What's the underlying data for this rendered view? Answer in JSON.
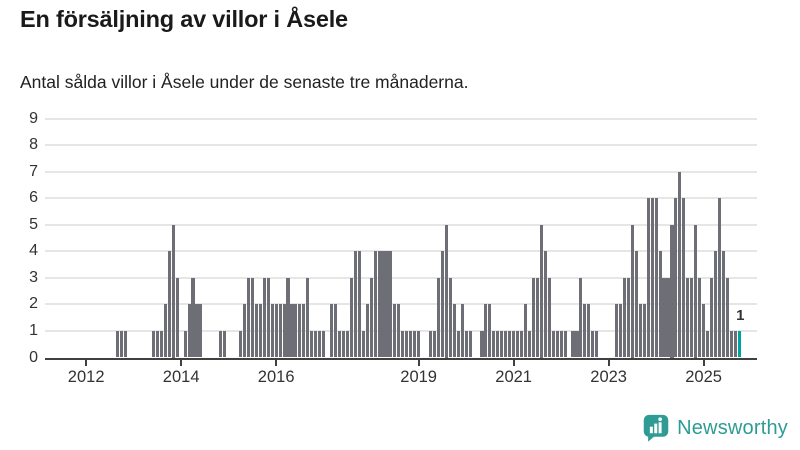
{
  "header": {
    "title": "En försäljning av villor i Åsele",
    "subtitle": "Antal sålda villor i Åsele under de senaste tre månaderna."
  },
  "chart_data": {
    "type": "bar",
    "title": "En försäljning av villor i Åsele",
    "subtitle": "Antal sålda villor i Åsele under de senaste tre månaderna.",
    "xlabel": "",
    "ylabel": "",
    "ylim": [
      0,
      9
    ],
    "yticks": [
      0,
      1,
      2,
      3,
      4,
      5,
      6,
      7,
      8,
      9
    ],
    "grid": true,
    "legend": "none",
    "x_start_month": "2011-04",
    "x_end_month": "2025-10",
    "values": [
      0,
      0,
      0,
      0,
      0,
      0,
      0,
      0,
      0,
      0,
      0,
      0,
      0,
      0,
      0,
      0,
      0,
      1,
      1,
      1,
      0,
      0,
      0,
      0,
      0,
      0,
      1,
      1,
      1,
      2,
      4,
      5,
      3,
      0,
      1,
      2,
      3,
      2,
      2,
      0,
      0,
      0,
      0,
      1,
      1,
      0,
      0,
      0,
      1,
      2,
      3,
      3,
      2,
      2,
      3,
      3,
      2,
      2,
      2,
      2,
      3,
      2,
      2,
      2,
      2,
      3,
      1,
      1,
      1,
      1,
      0,
      2,
      2,
      1,
      1,
      1,
      3,
      4,
      4,
      1,
      2,
      3,
      4,
      4,
      4,
      4,
      4,
      2,
      2,
      1,
      1,
      1,
      1,
      1,
      0,
      0,
      1,
      1,
      3,
      4,
      5,
      3,
      2,
      1,
      2,
      1,
      1,
      0,
      0,
      1,
      2,
      2,
      1,
      1,
      1,
      1,
      1,
      1,
      1,
      1,
      2,
      1,
      3,
      3,
      5,
      4,
      3,
      1,
      1,
      1,
      1,
      0,
      1,
      1,
      3,
      2,
      2,
      1,
      1,
      0,
      0,
      0,
      0,
      2,
      2,
      3,
      3,
      5,
      4,
      2,
      2,
      6,
      6,
      6,
      4,
      3,
      3,
      5,
      6,
      7,
      6,
      3,
      3,
      5,
      3,
      2,
      1,
      3,
      4,
      6,
      4,
      3,
      1,
      1,
      1
    ],
    "xticks": [
      {
        "label": "2012",
        "month_index": 9
      },
      {
        "label": "2014",
        "month_index": 33
      },
      {
        "label": "2016",
        "month_index": 57
      },
      {
        "label": "2019",
        "month_index": 93
      },
      {
        "label": "2021",
        "month_index": 117
      },
      {
        "label": "2023",
        "month_index": 141
      },
      {
        "label": "2025",
        "month_index": 165
      }
    ],
    "highlight": {
      "index": 174,
      "value_label": "1"
    },
    "colors": {
      "bar": "#6E6E77",
      "highlight": "#00A3A3",
      "grid": "#E6E6E6",
      "axis": "#404040",
      "text": "#333333"
    }
  },
  "footer": {
    "brand": "Newsworthy",
    "brand_color": "#2E9C94",
    "logo_icon": "newsworthy-speech-bubble-bar-chart-icon"
  }
}
